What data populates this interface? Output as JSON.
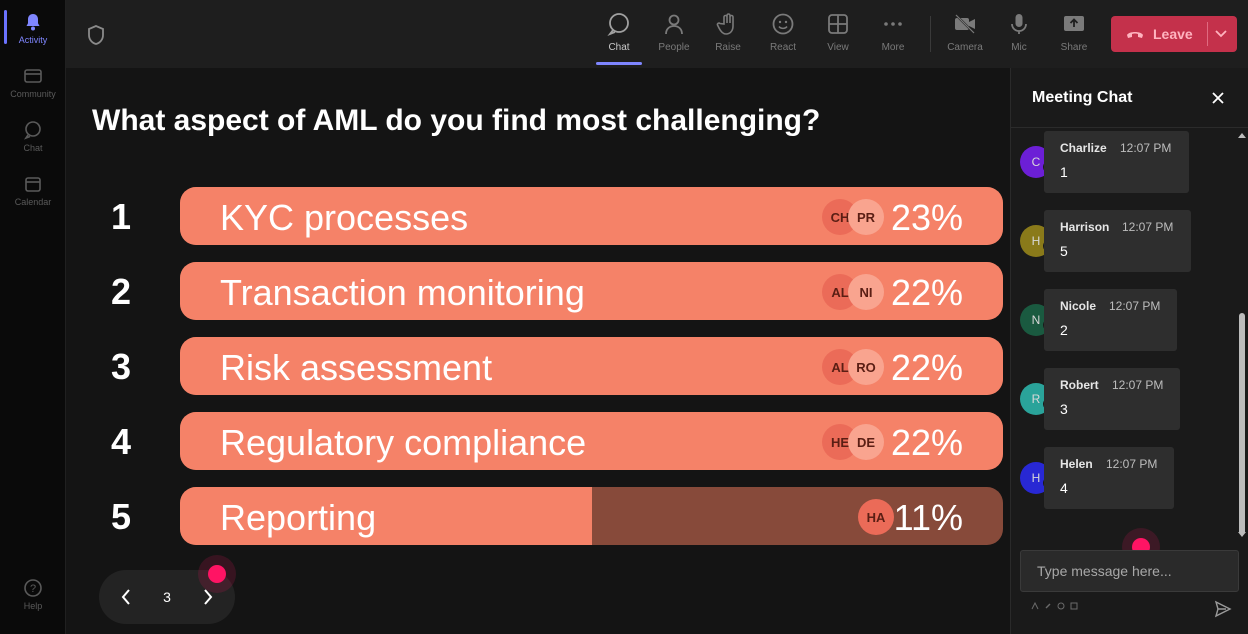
{
  "rail": {
    "items": [
      {
        "label": "Activity",
        "icon": "bell-icon"
      },
      {
        "label": "Community",
        "icon": "community-icon"
      },
      {
        "label": "Chat",
        "icon": "chat-icon"
      },
      {
        "label": "Calendar",
        "icon": "calendar-icon"
      }
    ],
    "help_label": "Help"
  },
  "toolbar": {
    "buttons": [
      {
        "label": "Chat",
        "icon": "chat-icon"
      },
      {
        "label": "People",
        "icon": "people-icon"
      },
      {
        "label": "Raise",
        "icon": "hand-icon"
      },
      {
        "label": "React",
        "icon": "smile-icon"
      },
      {
        "label": "View",
        "icon": "grid-icon"
      },
      {
        "label": "More",
        "icon": "more-icon"
      },
      {
        "label": "Camera",
        "icon": "camera-off-icon"
      },
      {
        "label": "Mic",
        "icon": "mic-icon"
      },
      {
        "label": "Share",
        "icon": "share-icon"
      }
    ],
    "leave_label": "Leave",
    "leave_color": "#c4314b"
  },
  "poll": {
    "question": "What aspect of AML do you find most challenging?",
    "options": [
      {
        "num": "1",
        "label": "KYC processes",
        "pct": "23%",
        "fill": 1.0,
        "avatars": [
          "CH",
          "PR"
        ]
      },
      {
        "num": "2",
        "label": "Transaction monitoring",
        "pct": "22%",
        "fill": 1.0,
        "avatars": [
          "AL",
          "NI"
        ]
      },
      {
        "num": "3",
        "label": "Risk assessment",
        "pct": "22%",
        "fill": 1.0,
        "avatars": [
          "AL",
          "RO"
        ]
      },
      {
        "num": "4",
        "label": "Regulatory compliance",
        "pct": "22%",
        "fill": 1.0,
        "avatars": [
          "HE",
          "DE"
        ]
      },
      {
        "num": "5",
        "label": "Reporting",
        "pct": "11%",
        "fill": 0.5,
        "avatars": [
          "HA"
        ]
      }
    ],
    "bar_color": "#f58268",
    "bar_track_color": "#874a3a",
    "page": "3"
  },
  "chat": {
    "title": "Meeting Chat",
    "messages": [
      {
        "initial": "C",
        "name": "Charlize",
        "time": "12:07 PM",
        "text": "1",
        "color": "#6c1fd6"
      },
      {
        "initial": "H",
        "name": "Harrison",
        "time": "12:07 PM",
        "text": "5",
        "color": "#8a7a1a"
      },
      {
        "initial": "N",
        "name": "Nicole",
        "time": "12:07 PM",
        "text": "2",
        "color": "#1a5a40"
      },
      {
        "initial": "R",
        "name": "Robert",
        "time": "12:07 PM",
        "text": "3",
        "color": "#2aa39a"
      },
      {
        "initial": "H",
        "name": "Helen",
        "time": "12:07 PM",
        "text": "4",
        "color": "#2828d4"
      }
    ],
    "input_placeholder": "Type message here...",
    "format_icons": [
      "format-icon",
      "attach-icon",
      "emoji-icon",
      "gif-icon"
    ]
  }
}
